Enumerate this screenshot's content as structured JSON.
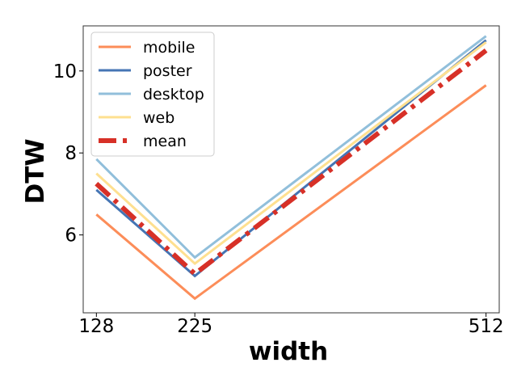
{
  "chart_data": {
    "type": "line",
    "xlabel": "width",
    "ylabel": "DTW",
    "x": [
      128,
      225,
      512
    ],
    "x_tick_labels": [
      "128",
      "225",
      "512"
    ],
    "y_ticks": [
      6,
      8,
      10
    ],
    "y_tick_labels": [
      "6",
      "8",
      "10"
    ],
    "xlim": [
      115,
      525
    ],
    "ylim": [
      4.1,
      11.1
    ],
    "grid": false,
    "legend_position": "top-left",
    "series": [
      {
        "name": "mobile",
        "values": [
          6.5,
          4.45,
          9.65
        ],
        "color": "#fc8d59",
        "style": "solid"
      },
      {
        "name": "poster",
        "values": [
          7.1,
          5.0,
          10.75
        ],
        "color": "#4575b4",
        "style": "solid"
      },
      {
        "name": "desktop",
        "values": [
          7.85,
          5.45,
          10.85
        ],
        "color": "#91bfdb",
        "style": "solid"
      },
      {
        "name": "web",
        "values": [
          7.5,
          5.3,
          10.7
        ],
        "color": "#fee090",
        "style": "solid"
      },
      {
        "name": "mean",
        "values": [
          7.25,
          5.05,
          10.5
        ],
        "color": "#d73027",
        "style": "dashdot"
      }
    ]
  }
}
